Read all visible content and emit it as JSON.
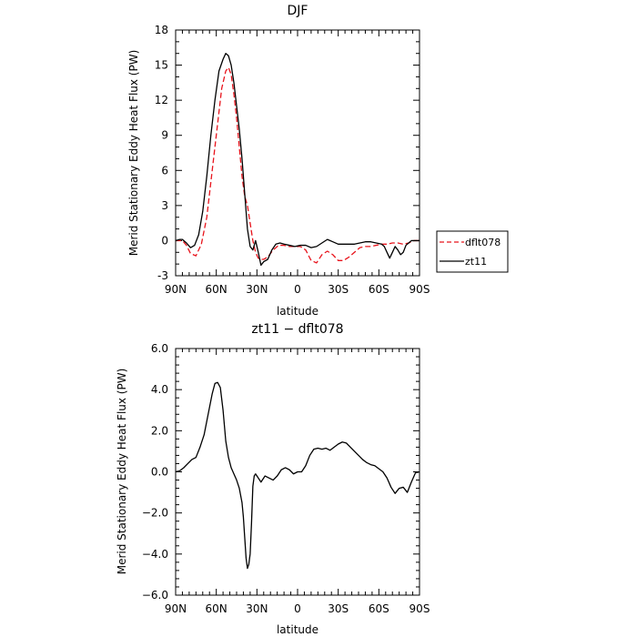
{
  "chart_data": [
    {
      "type": "line",
      "title": "DJF",
      "xlabel": "latitude",
      "ylabel": "Merid Stationary Eddy Heat Flux (PW)",
      "xlim": [
        90,
        -90
      ],
      "ylim": [
        -3,
        18
      ],
      "x_ticks": [
        {
          "value": 90,
          "label": "90N"
        },
        {
          "value": 60,
          "label": "60N"
        },
        {
          "value": 30,
          "label": "30N"
        },
        {
          "value": 0,
          "label": "0"
        },
        {
          "value": -30,
          "label": "30S"
        },
        {
          "value": -60,
          "label": "60S"
        },
        {
          "value": -90,
          "label": "90S"
        }
      ],
      "y_ticks": [
        {
          "value": -3,
          "label": "-3"
        },
        {
          "value": 0,
          "label": "0"
        },
        {
          "value": 3,
          "label": "3"
        },
        {
          "value": 6,
          "label": "6"
        },
        {
          "value": 9,
          "label": "9"
        },
        {
          "value": 12,
          "label": "12"
        },
        {
          "value": 15,
          "label": "15"
        },
        {
          "value": 18,
          "label": "18"
        }
      ],
      "legend_position": "right",
      "series": [
        {
          "name": "dflt078",
          "color": "#e8141c",
          "dash": "dashed",
          "x": [
            90,
            85,
            82,
            79,
            75,
            71,
            67,
            63,
            59,
            56,
            53,
            51,
            49,
            47,
            45,
            43,
            41,
            39,
            37,
            35,
            33,
            31,
            29,
            27,
            25,
            22,
            18,
            14,
            10,
            6,
            2,
            -2,
            -6,
            -10,
            -14,
            -18,
            -22,
            -26,
            -30,
            -34,
            -38,
            -42,
            -46,
            -50,
            -54,
            -58,
            -62,
            -66,
            -70,
            -74,
            -78,
            -82,
            -86,
            -90
          ],
          "y": [
            0.0,
            0.0,
            -0.4,
            -1.1,
            -1.3,
            -0.3,
            2.0,
            6.0,
            10.0,
            13.0,
            14.5,
            14.8,
            14.2,
            12.5,
            10.5,
            8.0,
            5.5,
            3.8,
            3.0,
            1.5,
            0.0,
            -1.0,
            -1.5,
            -1.6,
            -1.6,
            -1.4,
            -0.8,
            -0.4,
            -0.4,
            -0.5,
            -0.5,
            -0.5,
            -0.8,
            -1.7,
            -1.9,
            -1.2,
            -0.9,
            -1.2,
            -1.7,
            -1.7,
            -1.4,
            -1.0,
            -0.6,
            -0.5,
            -0.5,
            -0.4,
            -0.3,
            -0.3,
            -0.2,
            -0.2,
            -0.3,
            -0.2,
            0.0,
            0.0
          ]
        },
        {
          "name": "zt11",
          "color": "#000000",
          "dash": "solid",
          "x": [
            90,
            87,
            85,
            82,
            79,
            76,
            73,
            70,
            67,
            64,
            61,
            58,
            55,
            53,
            51,
            49,
            47,
            45,
            43,
            41,
            39,
            37,
            35,
            33,
            31,
            29,
            27,
            25,
            22,
            19,
            16,
            13,
            10,
            6,
            2,
            -2,
            -6,
            -10,
            -14,
            -18,
            -22,
            -26,
            -30,
            -34,
            -38,
            -42,
            -46,
            -50,
            -54,
            -58,
            -62,
            -64,
            -66,
            -68,
            -70,
            -72,
            -74,
            -76,
            -78,
            -80,
            -82,
            -84,
            -86,
            -88,
            -90
          ],
          "y": [
            0.0,
            0.1,
            0.1,
            -0.2,
            -0.6,
            -0.4,
            0.5,
            2.5,
            5.5,
            9.0,
            12.0,
            14.5,
            15.5,
            16.0,
            15.8,
            15.0,
            13.5,
            11.5,
            9.5,
            7.0,
            4.0,
            1.0,
            -0.5,
            -0.8,
            0.0,
            -1.0,
            -2.1,
            -1.8,
            -1.6,
            -0.8,
            -0.3,
            -0.2,
            -0.3,
            -0.4,
            -0.5,
            -0.4,
            -0.4,
            -0.6,
            -0.5,
            -0.2,
            0.1,
            -0.1,
            -0.3,
            -0.3,
            -0.3,
            -0.3,
            -0.2,
            -0.1,
            -0.1,
            -0.2,
            -0.3,
            -0.5,
            -1.0,
            -1.5,
            -1.0,
            -0.5,
            -0.8,
            -1.2,
            -1.0,
            -0.4,
            -0.2,
            0.0,
            0.0,
            0.0,
            0.0
          ]
        }
      ]
    },
    {
      "type": "line",
      "title": "zt11 − dflt078",
      "xlabel": "latitude",
      "ylabel": "Merid Stationary Eddy Heat Flux (PW)",
      "xlim": [
        90,
        -90
      ],
      "ylim": [
        -6,
        6
      ],
      "x_ticks": [
        {
          "value": 90,
          "label": "90N"
        },
        {
          "value": 60,
          "label": "60N"
        },
        {
          "value": 30,
          "label": "30N"
        },
        {
          "value": 0,
          "label": "0"
        },
        {
          "value": -30,
          "label": "30S"
        },
        {
          "value": -60,
          "label": "60S"
        },
        {
          "value": -90,
          "label": "90S"
        }
      ],
      "y_ticks": [
        {
          "value": -6,
          "label": "−6.0"
        },
        {
          "value": -4,
          "label": "−4.0"
        },
        {
          "value": -2,
          "label": "−2.0"
        },
        {
          "value": 0,
          "label": "0.0"
        },
        {
          "value": 2,
          "label": "2.0"
        },
        {
          "value": 4,
          "label": "4.0"
        },
        {
          "value": 6,
          "label": "6.0"
        }
      ],
      "series": [
        {
          "name": "",
          "color": "#000000",
          "dash": "solid",
          "x": [
            90,
            87,
            84,
            81,
            78,
            75,
            72,
            69,
            66,
            63,
            61,
            59,
            57,
            55,
            53,
            51,
            49,
            47,
            45,
            43,
            41,
            40,
            39,
            38,
            37,
            36,
            35,
            34,
            33,
            32,
            31,
            29,
            27,
            24,
            21,
            18,
            15,
            12,
            9,
            6,
            3,
            0,
            -3,
            -6,
            -9,
            -12,
            -15,
            -18,
            -21,
            -24,
            -27,
            -30,
            -33,
            -36,
            -39,
            -42,
            -45,
            -48,
            -51,
            -54,
            -57,
            -60,
            -63,
            -66,
            -69,
            -72,
            -75,
            -78,
            -81,
            -84,
            -87,
            -90
          ],
          "y": [
            0.0,
            0.05,
            0.2,
            0.4,
            0.6,
            0.7,
            1.2,
            1.8,
            2.8,
            3.8,
            4.3,
            4.35,
            4.1,
            3.0,
            1.5,
            0.7,
            0.2,
            -0.1,
            -0.4,
            -0.8,
            -1.5,
            -2.2,
            -3.2,
            -4.2,
            -4.7,
            -4.5,
            -4.0,
            -2.5,
            -0.7,
            -0.2,
            -0.1,
            -0.3,
            -0.5,
            -0.2,
            -0.3,
            -0.4,
            -0.2,
            0.1,
            0.2,
            0.1,
            -0.1,
            0.0,
            0.0,
            0.3,
            0.8,
            1.1,
            1.15,
            1.1,
            1.15,
            1.05,
            1.2,
            1.35,
            1.45,
            1.4,
            1.2,
            1.0,
            0.8,
            0.6,
            0.45,
            0.35,
            0.3,
            0.15,
            0.0,
            -0.3,
            -0.75,
            -1.05,
            -0.8,
            -0.75,
            -1.0,
            -0.5,
            -0.05,
            0.0
          ]
        }
      ]
    }
  ]
}
